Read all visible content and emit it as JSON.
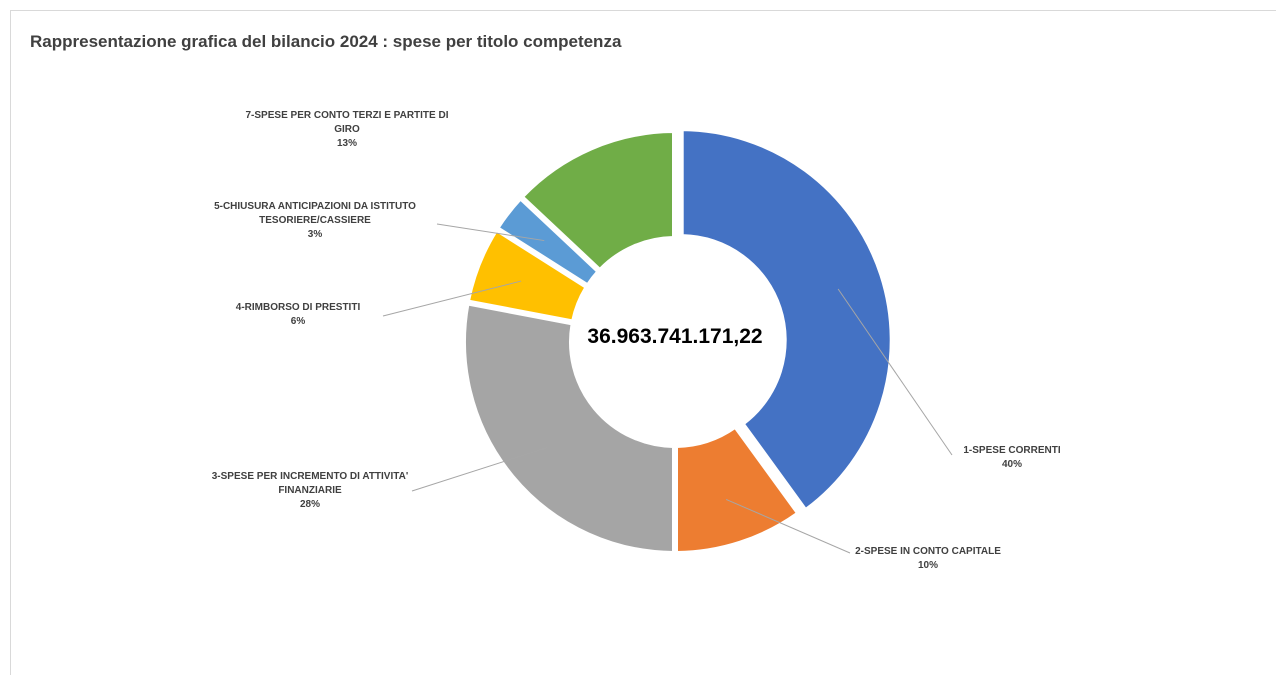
{
  "chart_data": {
    "type": "pie",
    "title": "Rappresentazione grafica del bilancio 2024 : spese per titolo competenza",
    "center_label": "36.963.741.171,22",
    "slices": [
      {
        "name": "1-SPESE CORRENTI",
        "percent_label": "40%",
        "value": 40,
        "color": "#4472c4"
      },
      {
        "name": "2-SPESE IN CONTO CAPITALE",
        "percent_label": "10%",
        "value": 10,
        "color": "#ed7d31"
      },
      {
        "name": "3-SPESE PER INCREMENTO DI ATTIVITA' FINANZIARIE",
        "percent_label": "28%",
        "value": 28,
        "color": "#a5a5a5"
      },
      {
        "name": "4-RIMBORSO DI PRESTITI",
        "percent_label": "6%",
        "value": 6,
        "color": "#ffc000"
      },
      {
        "name": "5-CHIUSURA ANTICIPAZIONI DA ISTITUTO TESORIERE/CASSIERE",
        "percent_label": "3%",
        "value": 3,
        "color": "#5b9bd5"
      },
      {
        "name": "7-SPESE PER CONTO TERZI E PARTITE DI GIRO",
        "percent_label": "13%",
        "value": 13,
        "color": "#70ad47"
      }
    ],
    "legend": "none"
  }
}
